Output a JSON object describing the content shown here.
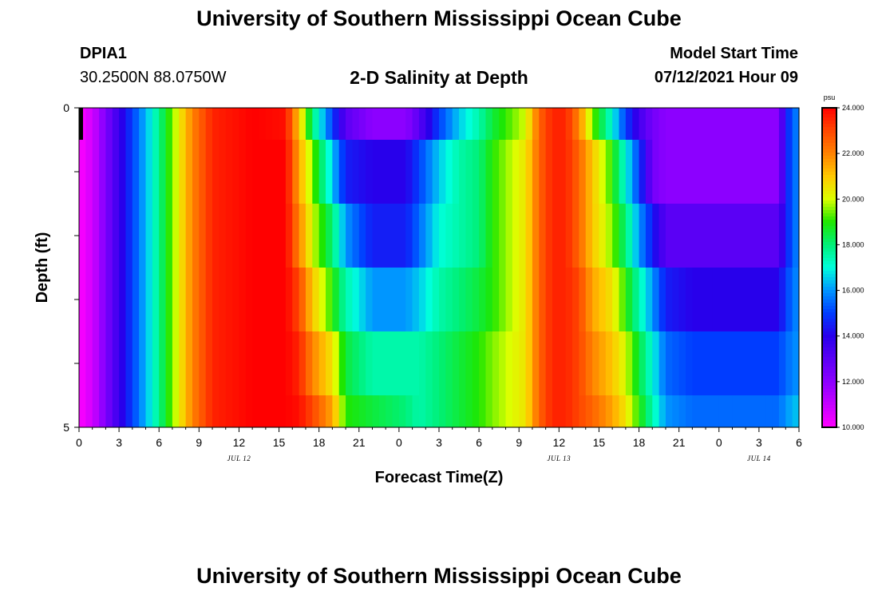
{
  "header": {
    "title": "University of Southern Mississippi Ocean Cube",
    "footer_title": "University of Southern Mississippi Ocean Cube",
    "station_id": "DPIA1",
    "coordinates": "30.2500N  88.0750W",
    "chart_title": "2-D Salinity at Depth",
    "model_start_label": "Model Start Time",
    "model_start_value": "07/12/2021 Hour 09"
  },
  "chart_data": {
    "type": "heatmap",
    "title": "2-D Salinity at Depth",
    "xlabel": "Forecast Time(Z)",
    "ylabel": "Depth (ft)",
    "x_range_hours": [
      0,
      54
    ],
    "y_range": [
      0,
      5
    ],
    "x_tick_labels": [
      "0",
      "3",
      "6",
      "9",
      "12",
      "15",
      "18",
      "21",
      "0",
      "3",
      "6",
      "9",
      "12",
      "15",
      "18",
      "21",
      "0",
      "3",
      "6"
    ],
    "y_tick_labels": [
      {
        "value": 0,
        "label": "0"
      },
      {
        "value": 1,
        "label": ""
      },
      {
        "value": 2,
        "label": ""
      },
      {
        "value": 3,
        "label": ""
      },
      {
        "value": 4,
        "label": ""
      },
      {
        "value": 5,
        "label": "5"
      }
    ],
    "date_labels": [
      {
        "hour": 12,
        "label": "JUL 12"
      },
      {
        "hour": 36,
        "label": "JUL 13"
      },
      {
        "hour": 51,
        "label": "JUL 14"
      }
    ],
    "colorbar": {
      "unit": "psu",
      "min": 10,
      "max": 24,
      "ticks": [
        "24.000",
        "22.000",
        "20.000",
        "18.000",
        "16.000",
        "14.000",
        "12.000",
        "10.000"
      ]
    },
    "layer_depths": [
      "0-0.5",
      "0.5-1.5",
      "1.5-2.5",
      "2.5-3.5",
      "3.5-4.5",
      "4.5-5"
    ],
    "series": [
      {
        "name": "0-0.5 ft",
        "hours": [
          0,
          1,
          2.5,
          4,
          5.5,
          7,
          8.5,
          10,
          13,
          15.5,
          16.5,
          17.5,
          19,
          20,
          22,
          24.5,
          25.5,
          27,
          28.5,
          30,
          31,
          33.5,
          34.5,
          35.5,
          36.5,
          37.5,
          38.5,
          40,
          41,
          42,
          43,
          44,
          46,
          52.5,
          53,
          54
        ],
        "values": [
          10,
          10.8,
          13,
          15,
          17,
          19.5,
          22,
          23.5,
          24,
          23.8,
          21,
          18,
          15,
          13,
          12,
          12,
          13,
          15,
          16.5,
          17.5,
          18.5,
          20,
          22.5,
          23.5,
          23.5,
          22,
          19.5,
          17,
          15,
          13.5,
          12.5,
          12,
          12,
          12,
          14.5,
          16
        ]
      },
      {
        "name": "0.5-1.5 ft",
        "hours": [
          0,
          1,
          2.5,
          4,
          5.5,
          7,
          8.5,
          10,
          13,
          15.5,
          16.5,
          17.5,
          19,
          20,
          22,
          24.5,
          25.5,
          27,
          28.5,
          30,
          31,
          33.5,
          34.5,
          35.5,
          36.5,
          37.5,
          38.5,
          40,
          41,
          42,
          43,
          44,
          46,
          52.5,
          53,
          54
        ],
        "values": [
          10,
          10.8,
          13,
          15,
          17,
          19.5,
          22,
          23.5,
          24,
          24,
          21.5,
          19.5,
          16.5,
          14.5,
          14,
          14,
          15,
          16.5,
          17.5,
          18,
          19,
          20.5,
          22.5,
          23.5,
          23.5,
          22.5,
          21,
          19,
          17,
          15,
          12.5,
          12,
          12,
          12,
          14.5,
          16
        ]
      },
      {
        "name": "1.5-2.5 ft",
        "hours": [
          0,
          1,
          2.5,
          4,
          5.5,
          7,
          8.5,
          10,
          13,
          15.5,
          16.5,
          17.5,
          19,
          20,
          22,
          24.5,
          25.5,
          27,
          28.5,
          30,
          31,
          33.5,
          34.5,
          35.5,
          36.5,
          37.5,
          38.5,
          40,
          41,
          42,
          43,
          44,
          46,
          52.5,
          53,
          54
        ],
        "values": [
          10,
          10.8,
          13,
          15,
          17,
          19.5,
          22,
          23.5,
          24,
          24,
          22,
          20,
          18,
          16,
          14.5,
          14.5,
          15.5,
          17,
          17.5,
          18,
          19,
          20.5,
          22.5,
          23.5,
          23.5,
          22.5,
          21,
          19.5,
          18,
          16,
          14.5,
          13,
          13,
          13,
          14.5,
          16
        ]
      },
      {
        "name": "2.5-3.5 ft",
        "hours": [
          0,
          1,
          2.5,
          4,
          5.5,
          7,
          8.5,
          10,
          13,
          15.5,
          16.5,
          17.5,
          19,
          20,
          22,
          24.5,
          25.5,
          27,
          28.5,
          30,
          31,
          33.5,
          34.5,
          35.5,
          36.5,
          37.5,
          38.5,
          40,
          41,
          42,
          43,
          44,
          46,
          52.5,
          53,
          54
        ],
        "values": [
          10,
          10.8,
          13,
          15,
          17,
          19.5,
          22,
          23.5,
          24,
          24,
          23,
          21,
          19,
          17.5,
          16,
          16,
          16.5,
          17.5,
          18,
          18.5,
          19,
          20.5,
          22.5,
          23.5,
          23.5,
          23,
          21.5,
          20.5,
          19,
          17.5,
          16,
          14.5,
          14,
          14,
          15,
          16
        ]
      },
      {
        "name": "3.5-4.5 ft",
        "hours": [
          0,
          1,
          2.5,
          4,
          5.5,
          7,
          8.5,
          10,
          13,
          15.5,
          16.5,
          17.5,
          19,
          20,
          22,
          24.5,
          25.5,
          27,
          28.5,
          30,
          31,
          33.5,
          34.5,
          35.5,
          36.5,
          37.5,
          38.5,
          40,
          41,
          42,
          43,
          44,
          46,
          52.5,
          53,
          54
        ],
        "values": [
          10,
          10.8,
          13,
          15,
          17,
          19.5,
          22,
          23.5,
          24,
          24,
          23.5,
          22,
          20.5,
          18.5,
          17.5,
          17.5,
          17.5,
          18,
          18.5,
          19,
          19.5,
          20.5,
          22.5,
          23.5,
          23.5,
          23,
          22,
          21,
          20,
          18.5,
          17,
          15.5,
          15,
          15,
          15.5,
          16
        ]
      },
      {
        "name": "4.5-5 ft",
        "hours": [
          0,
          1,
          2.5,
          4,
          5.5,
          7,
          8.5,
          10,
          13,
          15.5,
          16.5,
          17.5,
          19,
          20,
          22,
          24.5,
          25.5,
          27,
          28.5,
          30,
          31,
          33.5,
          34.5,
          35.5,
          36.5,
          37.5,
          38.5,
          40,
          41,
          42,
          43,
          44,
          46,
          52.5,
          53,
          54
        ],
        "values": [
          10,
          10.8,
          13,
          15,
          17,
          19.5,
          22,
          23.5,
          24,
          24,
          23.8,
          23,
          21.5,
          19,
          18.5,
          18,
          17.5,
          18,
          18.5,
          19,
          19.5,
          20.5,
          22.5,
          23.5,
          23.5,
          23,
          22.5,
          21.5,
          20.5,
          19,
          17.5,
          16,
          15.5,
          15.5,
          16,
          16.5
        ]
      }
    ]
  }
}
